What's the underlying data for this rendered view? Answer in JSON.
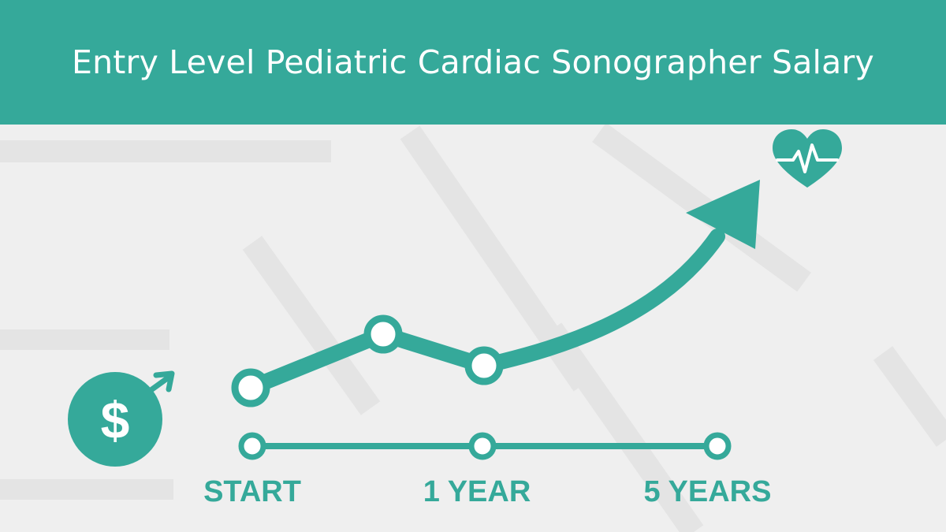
{
  "header": {
    "title": "Entry Level Pediatric Cardiac Sonographer Salary"
  },
  "timeline": {
    "labels": [
      "START",
      "1 YEAR",
      "5 YEARS"
    ]
  },
  "icons": {
    "left": "dollar-coin-icon",
    "right": "heart-pulse-icon",
    "arrow": "growth-arrow-icon"
  },
  "colors": {
    "accent": "#35a99a",
    "background": "#efefef",
    "header_text": "#ffffff"
  }
}
